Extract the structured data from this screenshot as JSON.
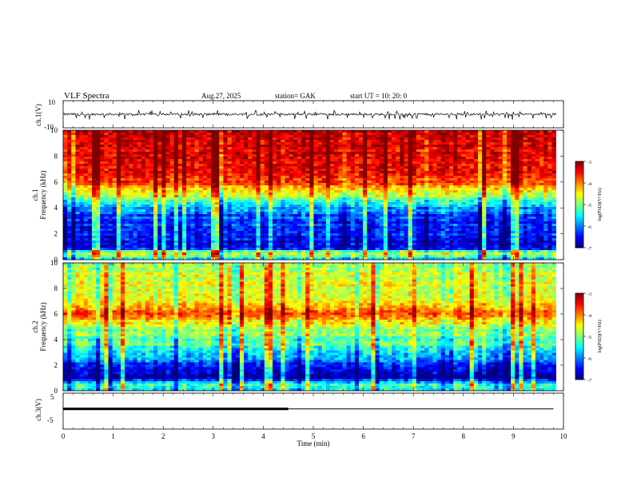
{
  "header": {
    "title": "VLF  Spectra",
    "date": "Aug.27, 2025",
    "station": "station= GAK",
    "start": "start  UT =    10: 20: 0"
  },
  "chart_data": [
    {
      "type": "line",
      "name": "ch1-waveform",
      "ylabel": "ch.1(V)",
      "ylim": [
        -10,
        10
      ],
      "yticks": [
        "10",
        "-10"
      ],
      "xlim": [
        0,
        10
      ],
      "description_values": {
        "baseline": 0,
        "typical_spike_max": 3,
        "typical_spike_min": -4
      }
    },
    {
      "type": "heatmap",
      "name": "ch1-spectrogram",
      "ylabel_top": "ch.1",
      "ylabel": "Frequency  (kHz)",
      "ylim": [
        0,
        10
      ],
      "yticks": [
        "0",
        "2",
        "4",
        "6",
        "8",
        "10"
      ],
      "xlim": [
        0,
        10
      ],
      "data_end_minute": 9.85,
      "colorbar": {
        "label": "log(PSD)(V²/Hz)",
        "range": [
          -7,
          -3
        ],
        "ticks": [
          "-3",
          "-4",
          "-5",
          "-6",
          "-7"
        ]
      },
      "levels_by_frequency_khz": [
        [
          0.0,
          -5.8
        ],
        [
          0.5,
          -4.5
        ],
        [
          0.9,
          -6.7
        ],
        [
          2.0,
          -6.5
        ],
        [
          3.5,
          -6.2
        ],
        [
          4.3,
          -5.6
        ],
        [
          5.0,
          -4.6
        ],
        [
          6.0,
          -3.8
        ],
        [
          7.0,
          -3.4
        ],
        [
          10.0,
          -3.3
        ]
      ]
    },
    {
      "type": "heatmap",
      "name": "ch2-spectrogram",
      "ylabel_top": "ch.2",
      "ylabel": "Frequency  (kHz)",
      "ylim": [
        0,
        10
      ],
      "yticks": [
        "0",
        "2",
        "4",
        "6",
        "8",
        "10"
      ],
      "xlim": [
        0,
        10
      ],
      "data_end_minute": 9.85,
      "colorbar": {
        "label": "log(PSD)(V²/Hz)",
        "range": [
          -7,
          -3
        ],
        "ticks": [
          "-3",
          "-4",
          "-5",
          "-6",
          "-7"
        ]
      },
      "levels_by_frequency_khz": [
        [
          0.0,
          -5.4
        ],
        [
          0.5,
          -5.2
        ],
        [
          1.0,
          -6.8
        ],
        [
          1.8,
          -6.6
        ],
        [
          2.5,
          -5.8
        ],
        [
          3.5,
          -5.2
        ],
        [
          5.0,
          -4.8
        ],
        [
          6.2,
          -3.7
        ],
        [
          7.0,
          -4.6
        ],
        [
          10.0,
          -4.7
        ]
      ]
    },
    {
      "type": "line",
      "name": "ch3-voltage",
      "ylabel": "ch.3(V)",
      "ylim": [
        -5,
        5
      ],
      "yticks": [
        "5",
        "-5"
      ],
      "xlim": [
        0,
        10
      ],
      "xlabel": "Time  (min)",
      "xticks": [
        "0",
        "1",
        "2",
        "3",
        "4",
        "5",
        "6",
        "7",
        "8",
        "9",
        "10"
      ],
      "segments": [
        {
          "x_start": 0.0,
          "x_end": 4.5,
          "value": 0.6,
          "style": "thick"
        },
        {
          "x_start": 4.5,
          "x_end": 9.8,
          "value": 0.6,
          "style": "thin"
        }
      ]
    }
  ]
}
